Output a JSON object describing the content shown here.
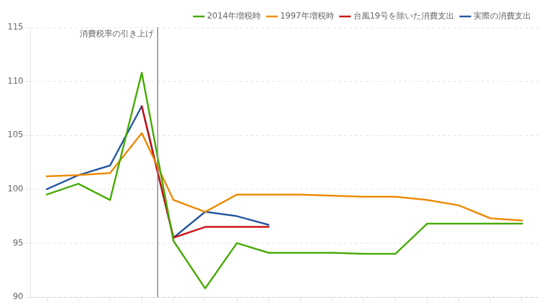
{
  "chart_data": {
    "type": "line",
    "series": [
      {
        "name": "2014年増税時",
        "color": "#44aa00",
        "x": [
          0,
          1,
          2,
          3,
          4,
          5,
          6,
          7,
          8,
          9,
          10,
          11,
          12,
          13,
          14,
          15
        ],
        "values": [
          99.5,
          100.5,
          99.0,
          110.8,
          95.2,
          90.8,
          95.0,
          94.1,
          94.1,
          94.1,
          94.0,
          94.0,
          96.8,
          96.8,
          96.8,
          96.8
        ]
      },
      {
        "name": "1997年増税時",
        "color": "#ee8800",
        "x": [
          0,
          1,
          2,
          3,
          4,
          5,
          6,
          7,
          8,
          9,
          10,
          11,
          12,
          13,
          14,
          15
        ],
        "values": [
          101.2,
          101.3,
          101.5,
          105.2,
          99.0,
          97.9,
          99.5,
          99.5,
          99.5,
          99.4,
          99.3,
          99.3,
          99.0,
          98.5,
          97.3,
          97.1
        ]
      },
      {
        "name": "台風19号を除いた消費支出",
        "color": "#cc1111",
        "x": [
          3,
          4,
          5,
          6,
          7
        ],
        "values": [
          107.7,
          95.5,
          96.5,
          96.5,
          96.5
        ]
      },
      {
        "name": "実際の消費支出",
        "color": "#2355a0",
        "x": [
          0,
          1,
          2,
          3,
          4,
          5,
          6,
          7
        ],
        "values": [
          100.0,
          101.3,
          102.2,
          107.7,
          95.5,
          97.9,
          97.5,
          96.7
        ]
      }
    ],
    "xlim": [
      -0.5,
      15.5
    ],
    "xticks": [
      0,
      1,
      2,
      3,
      4,
      5,
      6,
      7,
      8,
      9,
      10,
      11,
      12,
      13,
      14,
      15
    ],
    "ylim": [
      90,
      115
    ],
    "yticks": [
      90,
      95,
      100,
      105,
      110,
      115
    ],
    "grid": "y",
    "legend": "upper right",
    "tick_labels": "y",
    "annotations": [
      {
        "type": "vline",
        "x": 3.5,
        "label": "消費税率の引き上げ"
      }
    ]
  }
}
